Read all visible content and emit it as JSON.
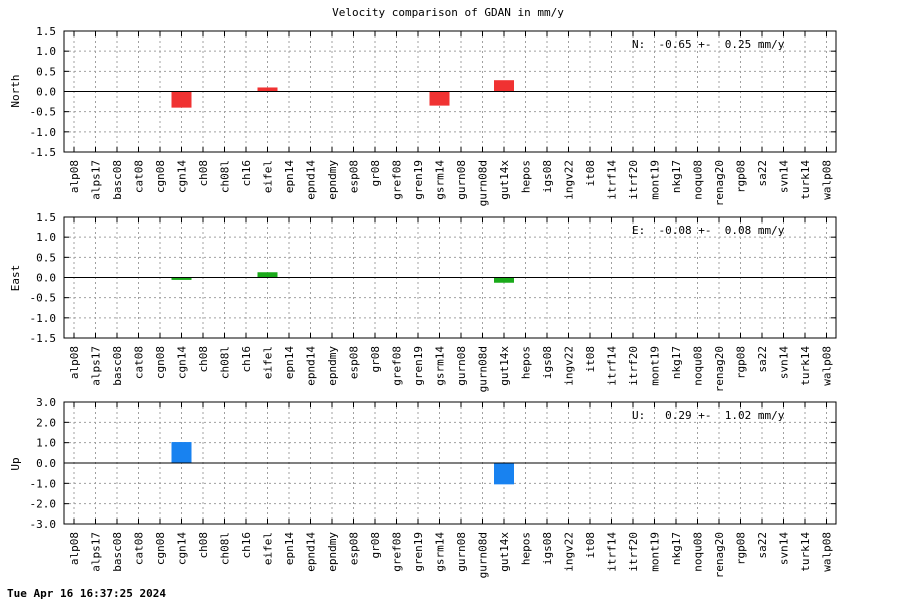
{
  "title": "Velocity comparison of GDAN in mm/y",
  "footer": "Tue Apr 16 16:37:25 2024",
  "chart_data": [
    {
      "type": "bar",
      "ylabel": "North",
      "annotation": "N:  -0.65 +-  0.25 mm/y",
      "color": "#f03232",
      "ylim": [
        -1.5,
        1.5
      ],
      "yticks": [
        1.5,
        1.0,
        0.5,
        0.0,
        -0.5,
        -1.0,
        -1.5
      ],
      "ytick_labels": [
        "1.5",
        "1.0",
        "0.5",
        "0.0",
        "-0.5",
        "-1.0",
        "-1.5"
      ],
      "grid": true,
      "categories": [
        "alp08",
        "alps17",
        "basc08",
        "cat08",
        "cgn08",
        "cgn14",
        "ch08",
        "ch08l",
        "ch16",
        "eifel",
        "epn14",
        "epnd14",
        "epndmy",
        "esp08",
        "gr08",
        "gref08",
        "gren19",
        "gsrm14",
        "gurn08",
        "gurn08d",
        "gut14x",
        "hepos",
        "igs08",
        "ingv22",
        "it08",
        "itrf14",
        "itrf20",
        "mont19",
        "nkg17",
        "noqu08",
        "renag20",
        "rgp08",
        "sa22",
        "svn14",
        "turk14",
        "walp08"
      ],
      "values": [
        0,
        0,
        0,
        0,
        0,
        -0.4,
        0,
        0,
        0,
        0.1,
        0,
        0,
        0,
        0,
        0,
        0,
        0,
        -0.35,
        0,
        0,
        0.28,
        0,
        0,
        0,
        0,
        0,
        0,
        0,
        0,
        0,
        0,
        0,
        0,
        0,
        0,
        0
      ]
    },
    {
      "type": "bar",
      "ylabel": "East",
      "annotation": "E:  -0.08 +-  0.08 mm/y",
      "color": "#1aaa1a",
      "ylim": [
        -1.5,
        1.5
      ],
      "yticks": [
        1.5,
        1.0,
        0.5,
        0.0,
        -0.5,
        -1.0,
        -1.5
      ],
      "ytick_labels": [
        "1.5",
        "1.0",
        "0.5",
        "0.0",
        "-0.5",
        "-1.0",
        "-1.5"
      ],
      "grid": true,
      "categories": [
        "alp08",
        "alps17",
        "basc08",
        "cat08",
        "cgn08",
        "cgn14",
        "ch08",
        "ch08l",
        "ch16",
        "eifel",
        "epn14",
        "epnd14",
        "epndmy",
        "esp08",
        "gr08",
        "gref08",
        "gren19",
        "gsrm14",
        "gurn08",
        "gurn08d",
        "gut14x",
        "hepos",
        "igs08",
        "ingv22",
        "it08",
        "itrf14",
        "itrf20",
        "mont19",
        "nkg17",
        "noqu08",
        "renag20",
        "rgp08",
        "sa22",
        "svn14",
        "turk14",
        "walp08"
      ],
      "values": [
        0,
        0,
        0,
        0,
        0,
        -0.06,
        0,
        0,
        0,
        0.13,
        0,
        0,
        0,
        0,
        0,
        0,
        0,
        0,
        0,
        0,
        -0.13,
        0,
        0,
        0,
        0,
        0,
        0,
        0,
        0,
        0,
        0,
        0,
        0,
        0,
        0,
        0
      ]
    },
    {
      "type": "bar",
      "ylabel": "Up",
      "annotation": "U:   0.29 +-  1.02 mm/y",
      "color": "#1882f0",
      "ylim": [
        -3.0,
        3.0
      ],
      "yticks": [
        3.0,
        2.0,
        1.0,
        0.0,
        -1.0,
        -2.0,
        -3.0
      ],
      "ytick_labels": [
        "3.0",
        "2.0",
        "1.0",
        "0.0",
        "-1.0",
        "-2.0",
        "-3.0"
      ],
      "grid": true,
      "categories": [
        "alp08",
        "alps17",
        "basc08",
        "cat08",
        "cgn08",
        "cgn14",
        "ch08",
        "ch08l",
        "ch16",
        "eifel",
        "epn14",
        "epnd14",
        "epndmy",
        "esp08",
        "gr08",
        "gref08",
        "gren19",
        "gsrm14",
        "gurn08",
        "gurn08d",
        "gut14x",
        "hepos",
        "igs08",
        "ingv22",
        "it08",
        "itrf14",
        "itrf20",
        "mont19",
        "nkg17",
        "noqu08",
        "renag20",
        "rgp08",
        "sa22",
        "svn14",
        "turk14",
        "walp08"
      ],
      "values": [
        0,
        0,
        0,
        0,
        0,
        1.03,
        0,
        0,
        0,
        0,
        0,
        0,
        0,
        0,
        0,
        0,
        0,
        0,
        0,
        0,
        -1.05,
        0,
        0,
        0,
        0,
        0,
        0,
        0,
        0,
        0,
        0,
        0,
        0,
        0,
        0,
        0
      ]
    }
  ]
}
